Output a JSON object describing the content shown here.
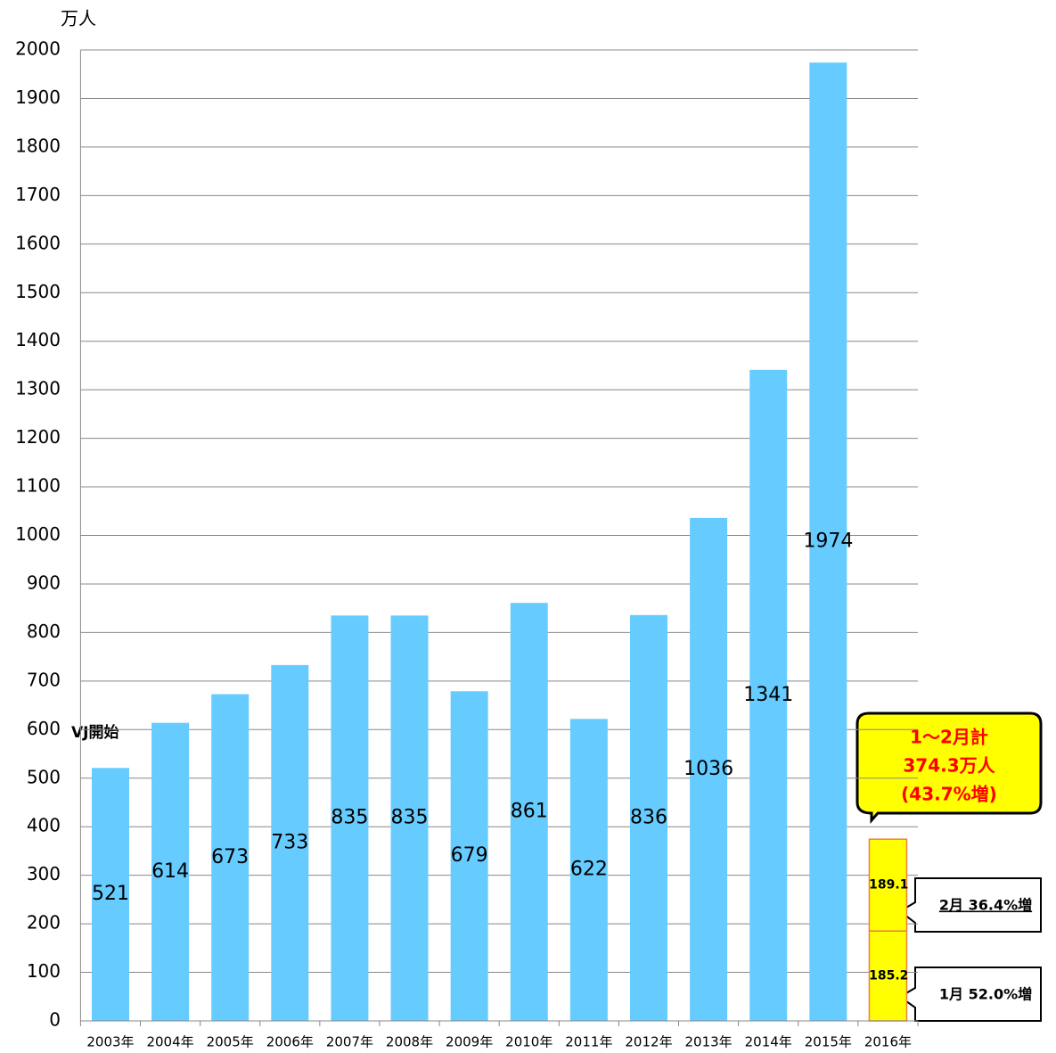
{
  "chart_data": {
    "type": "bar",
    "stacked": true,
    "y_label": "万人",
    "categories": [
      "2003年",
      "2004年",
      "2005年",
      "2006年",
      "2007年",
      "2008年",
      "2009年",
      "2010年",
      "2011年",
      "2012年",
      "2013年",
      "2014年",
      "2015年",
      "2016年"
    ],
    "series": [
      {
        "color": "#66ccff",
        "values": [
          521,
          614,
          673,
          733,
          835,
          835,
          679,
          861,
          622,
          836,
          1036,
          1341,
          1974,
          null
        ]
      },
      {
        "color": "#ffff00",
        "edgecolor": "#f08040",
        "values": [
          null,
          null,
          null,
          null,
          null,
          null,
          null,
          null,
          null,
          null,
          null,
          null,
          null,
          185.2
        ]
      },
      {
        "color": "#ffff00",
        "edgecolor": "#f08040",
        "values": [
          null,
          null,
          null,
          null,
          null,
          null,
          null,
          null,
          null,
          null,
          null,
          null,
          null,
          189.1
        ]
      }
    ],
    "ylim": [
      0,
      2000
    ],
    "yticks": [
      0,
      100,
      200,
      300,
      400,
      500,
      600,
      700,
      800,
      900,
      1000,
      1100,
      1200,
      1300,
      1400,
      1500,
      1600,
      1700,
      1800,
      1900,
      2000
    ],
    "grid": true,
    "annotations": {
      "start": "VJ開始",
      "total": [
        "1〜2月計",
        "374.3万人",
        "(43.7%増)"
      ],
      "feb": "2月 36.4%増",
      "jan": "1月 52.0%増"
    }
  }
}
